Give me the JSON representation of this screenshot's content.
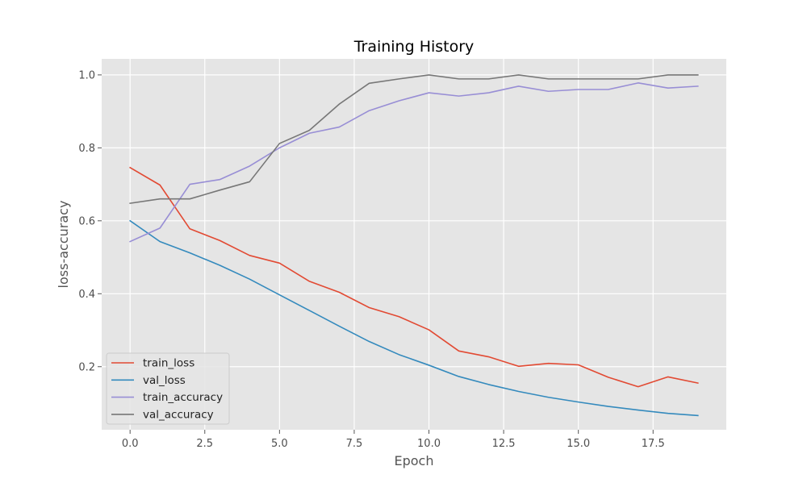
{
  "chart_data": {
    "type": "line",
    "title": "Training History",
    "xlabel": "Epoch",
    "ylabel": "loss-accuracy",
    "xlim": [
      -0.95,
      19.95
    ],
    "ylim": [
      0.027,
      1.044
    ],
    "xticks": [
      0.0,
      2.5,
      5.0,
      7.5,
      10.0,
      12.5,
      15.0,
      17.5
    ],
    "xtick_labels": [
      "0.0",
      "2.5",
      "5.0",
      "7.5",
      "10.0",
      "12.5",
      "15.0",
      "17.5"
    ],
    "yticks": [
      0.2,
      0.4,
      0.6,
      0.8,
      1.0
    ],
    "ytick_labels": [
      "0.2",
      "0.4",
      "0.6",
      "0.8",
      "1.0"
    ],
    "grid": true,
    "legend_position": "lower-left",
    "x": [
      0,
      1,
      2,
      3,
      4,
      5,
      6,
      7,
      8,
      9,
      10,
      11,
      12,
      13,
      14,
      15,
      16,
      17,
      18,
      19
    ],
    "series": [
      {
        "name": "train_loss",
        "color": "#E24A33",
        "values": [
          0.746,
          0.698,
          0.578,
          0.546,
          0.505,
          0.484,
          0.434,
          0.404,
          0.362,
          0.337,
          0.301,
          0.243,
          0.227,
          0.201,
          0.209,
          0.205,
          0.171,
          0.145,
          0.172,
          0.155
        ]
      },
      {
        "name": "val_loss",
        "color": "#348ABD",
        "values": [
          0.6,
          0.543,
          0.512,
          0.478,
          0.44,
          0.397,
          0.354,
          0.311,
          0.269,
          0.233,
          0.204,
          0.173,
          0.151,
          0.132,
          0.116,
          0.103,
          0.091,
          0.081,
          0.072,
          0.066
        ]
      },
      {
        "name": "train_accuracy",
        "color": "#988ED5",
        "values": [
          0.543,
          0.58,
          0.7,
          0.713,
          0.75,
          0.8,
          0.84,
          0.857,
          0.902,
          0.929,
          0.951,
          0.942,
          0.951,
          0.969,
          0.955,
          0.96,
          0.96,
          0.978,
          0.964,
          0.969
        ]
      },
      {
        "name": "val_accuracy",
        "color": "#777777",
        "values": [
          0.648,
          0.66,
          0.66,
          0.684,
          0.707,
          0.812,
          0.848,
          0.92,
          0.977,
          0.989,
          1.0,
          0.989,
          0.989,
          1.0,
          0.989,
          0.989,
          0.989,
          0.989,
          1.0,
          1.0
        ]
      }
    ]
  }
}
